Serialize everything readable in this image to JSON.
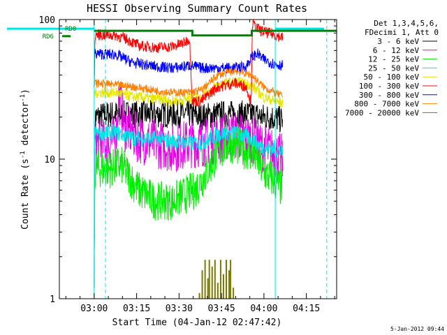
{
  "chart_data": {
    "type": "line",
    "title": "HESSI Observing Summary Count Rates",
    "xlabel": "Start Time (04-Jan-12 02:47:42)",
    "ylabel": "Count Rate (s⁻¹ detector⁻¹)",
    "y_scale": "log",
    "ylim": [
      1,
      100
    ],
    "x_range_minutes": [
      0,
      98
    ],
    "x_ticks": [
      {
        "label": "03:00",
        "min": 12.3
      },
      {
        "label": "03:15",
        "min": 27.3
      },
      {
        "label": "03:30",
        "min": 42.3
      },
      {
        "label": "03:45",
        "min": 57.3
      },
      {
        "label": "04:00",
        "min": 72.3
      },
      {
        "label": "04:15",
        "min": 87.3
      }
    ],
    "y_ticks": [
      {
        "label": "1",
        "value": 1
      },
      {
        "label": "10",
        "value": 10
      },
      {
        "label": "100",
        "value": 100
      }
    ],
    "legend_header": [
      "Det 1,3,4,5,6,",
      "FDecimi 1, Att 0"
    ],
    "series": [
      {
        "name": "3 - 6 keV",
        "color": "#000000",
        "noise": 0.1,
        "points": [
          [
            12.3,
            1.5
          ],
          [
            12.6,
            20
          ],
          [
            18,
            21
          ],
          [
            24,
            21
          ],
          [
            34,
            21
          ],
          [
            46,
            21
          ],
          [
            50,
            20
          ],
          [
            56,
            21
          ],
          [
            62,
            21
          ],
          [
            68,
            21
          ],
          [
            72,
            20
          ],
          [
            75,
            20
          ],
          [
            79,
            19
          ]
        ]
      },
      {
        "name": "6 - 12 keV",
        "color": "#e600e6",
        "noise": 0.18,
        "points": [
          [
            12.3,
            1.5
          ],
          [
            12.6,
            13
          ],
          [
            17,
            13
          ],
          [
            20,
            14
          ],
          [
            21,
            28
          ],
          [
            22,
            24
          ],
          [
            23,
            17
          ],
          [
            28,
            14
          ],
          [
            34,
            13
          ],
          [
            40,
            12
          ],
          [
            46,
            13
          ],
          [
            50,
            13
          ],
          [
            56,
            14
          ],
          [
            62,
            15
          ],
          [
            68,
            14
          ],
          [
            72,
            12
          ],
          [
            76,
            11
          ],
          [
            79,
            10
          ]
        ]
      },
      {
        "name": "12 - 25 keV",
        "color": "#00ee00",
        "noise": 0.14,
        "points": [
          [
            12.3,
            2
          ],
          [
            12.6,
            8.5
          ],
          [
            18,
            8.5
          ],
          [
            20,
            9
          ],
          [
            22,
            9
          ],
          [
            28,
            6
          ],
          [
            34,
            5
          ],
          [
            40,
            5
          ],
          [
            44,
            5.5
          ],
          [
            48,
            6
          ],
          [
            52,
            8
          ],
          [
            56,
            11
          ],
          [
            60,
            13
          ],
          [
            64,
            12
          ],
          [
            68,
            11
          ],
          [
            70,
            10
          ],
          [
            72,
            8
          ],
          [
            76,
            7
          ],
          [
            79,
            6
          ]
        ]
      },
      {
        "name": "25 - 50 keV",
        "color": "#00e5e5",
        "noise": 0.06,
        "points": [
          [
            12.3,
            2
          ],
          [
            12.6,
            15.5
          ],
          [
            20,
            15.5
          ],
          [
            28,
            14
          ],
          [
            34,
            14
          ],
          [
            40,
            13.5
          ],
          [
            46,
            13
          ],
          [
            50,
            13
          ],
          [
            56,
            15
          ],
          [
            60,
            15.5
          ],
          [
            64,
            15
          ],
          [
            68,
            14
          ],
          [
            72,
            12
          ],
          [
            76,
            12
          ],
          [
            79,
            11
          ]
        ]
      },
      {
        "name": "50 - 100 keV",
        "color": "#e6e600",
        "noise": 0.04,
        "points": [
          [
            12.3,
            30
          ],
          [
            12.6,
            30
          ],
          [
            20,
            30
          ],
          [
            26,
            28
          ],
          [
            34,
            27
          ],
          [
            40,
            26
          ],
          [
            46,
            27
          ],
          [
            50,
            28
          ],
          [
            56,
            34
          ],
          [
            62,
            36
          ],
          [
            68,
            34
          ],
          [
            72,
            28
          ],
          [
            76,
            26
          ],
          [
            79,
            25
          ]
        ]
      },
      {
        "name": "100 - 300 keV",
        "color": "#ff0000",
        "noise": 0.04,
        "points": [
          [
            12.3,
            30
          ],
          [
            12.6,
            78
          ],
          [
            20,
            77
          ],
          [
            24,
            72
          ],
          [
            28,
            65
          ],
          [
            34,
            63
          ],
          [
            40,
            64
          ],
          [
            44,
            68
          ],
          [
            46,
            73
          ],
          [
            47,
            26
          ],
          [
            50,
            26
          ],
          [
            56,
            33
          ],
          [
            62,
            35
          ],
          [
            66,
            33
          ],
          [
            67.8,
            26
          ],
          [
            68.2,
            94
          ],
          [
            70,
            86
          ],
          [
            72,
            82
          ],
          [
            76,
            78
          ],
          [
            79,
            74
          ]
        ]
      },
      {
        "name": "300 - 800 keV",
        "color": "#0000ff",
        "noise": 0.04,
        "points": [
          [
            12.3,
            55
          ],
          [
            12.6,
            57
          ],
          [
            20,
            56
          ],
          [
            26,
            49
          ],
          [
            34,
            46
          ],
          [
            40,
            45
          ],
          [
            44,
            46
          ],
          [
            46,
            47
          ],
          [
            50,
            45
          ],
          [
            56,
            45
          ],
          [
            62,
            45
          ],
          [
            66,
            46
          ],
          [
            68,
            54
          ],
          [
            70,
            57
          ],
          [
            72,
            52
          ],
          [
            76,
            48
          ],
          [
            79,
            47
          ]
        ]
      },
      {
        "name": "800 - 7000 keV",
        "color": "#ff8000",
        "noise": 0.03,
        "points": [
          [
            12.3,
            34
          ],
          [
            12.6,
            35
          ],
          [
            20,
            34
          ],
          [
            26,
            33
          ],
          [
            34,
            31
          ],
          [
            40,
            30
          ],
          [
            46,
            30
          ],
          [
            50,
            31
          ],
          [
            56,
            40
          ],
          [
            62,
            43
          ],
          [
            68,
            40
          ],
          [
            72,
            33
          ],
          [
            76,
            30
          ],
          [
            79,
            28
          ]
        ]
      },
      {
        "name": "7000 - 20000 keV",
        "color": "#7a7a00",
        "noise": 0,
        "bars": [
          [
            49.5,
            1.1
          ],
          [
            50.5,
            1.6
          ],
          [
            51.5,
            1.9
          ],
          [
            52.5,
            1.4
          ],
          [
            53,
            1.9
          ],
          [
            54,
            1.7
          ],
          [
            55,
            1.9
          ],
          [
            56,
            1.3
          ],
          [
            57,
            1.9
          ],
          [
            58,
            1.5
          ],
          [
            59,
            1.9
          ],
          [
            60,
            1.6
          ],
          [
            60.5,
            1.9
          ],
          [
            61.5,
            1.2
          ]
        ]
      }
    ],
    "flag_lines": [
      {
        "label": "RD0",
        "color": "#008000",
        "points": [
          [
            12.3,
            83
          ],
          [
            47,
            83
          ],
          [
            47,
            77
          ],
          [
            68,
            77
          ],
          [
            68,
            83
          ],
          [
            98,
            83
          ]
        ],
        "label_at": [
          2,
          86
        ]
      },
      {
        "label": "RD6",
        "color": "#008000",
        "points": [
          [
            1,
            76
          ],
          [
            4,
            76
          ]
        ],
        "label_at": [
          -6,
          76
        ]
      }
    ],
    "cyan_markers": {
      "color": "#00e5e5",
      "solid_x": [
        12.3,
        76.3
      ],
      "dashed_x": [
        16.3,
        94.5
      ],
      "top_bars": [
        [
          0,
          85
        ],
        [
          12.3,
          86
        ],
        [
          76.3,
          86
        ],
        [
          98,
          86
        ]
      ]
    },
    "background_image_note": "",
    "stamp": "5-Jan-2012 09:44"
  }
}
